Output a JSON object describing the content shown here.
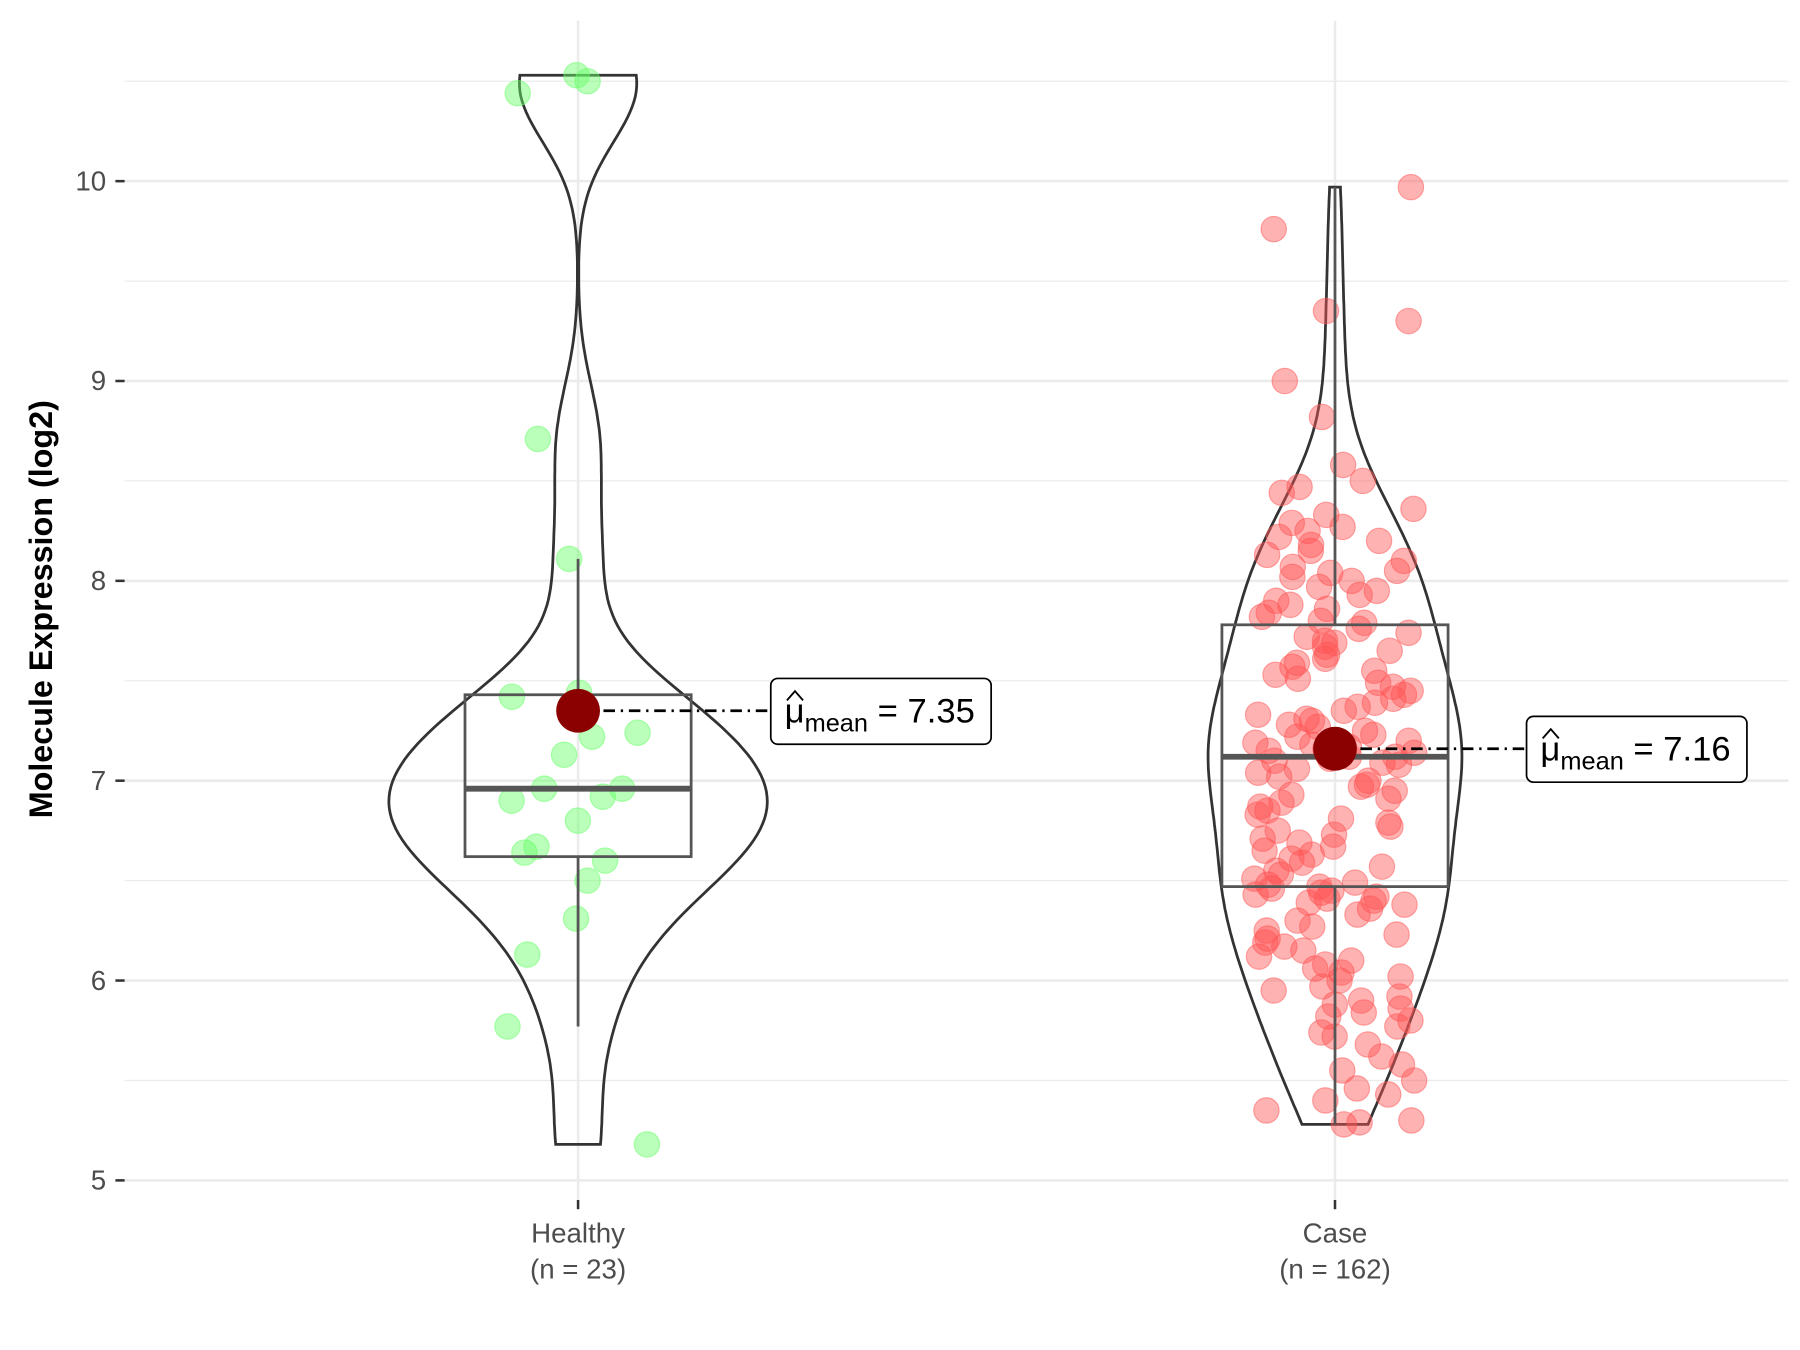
{
  "chart_data": {
    "type": "violin-box-scatter",
    "ylabel": "Molecule Expression (log2)",
    "xlabel": "",
    "ylim": [
      4.9,
      10.7
    ],
    "yticks": [
      5,
      6,
      7,
      8,
      9,
      10
    ],
    "grid": true,
    "groups": [
      {
        "name": "Healthy",
        "n_label": "(n = 23)",
        "color": "#66ff66",
        "box": {
          "lower_whisker": 5.77,
          "q1": 6.62,
          "median": 6.96,
          "q3": 7.43,
          "upper_whisker": 8.11
        },
        "mean": 7.35,
        "mean_label": {
          "symbol": "μ",
          "subscript": "mean",
          "value": "= 7.35"
        },
        "points": [
          10.53,
          10.5,
          10.44,
          8.71,
          8.11,
          7.44,
          7.42,
          7.24,
          7.22,
          7.13,
          6.96,
          6.96,
          6.92,
          6.9,
          6.8,
          6.67,
          6.6,
          6.64,
          6.5,
          6.31,
          6.13,
          5.77,
          5.18
        ]
      },
      {
        "name": "Case",
        "n_label": "(n = 162)",
        "color": "#ff5555",
        "box": {
          "lower_whisker": 5.28,
          "q1": 6.47,
          "median": 7.12,
          "q3": 7.78,
          "upper_whisker": 9.97
        },
        "mean": 7.16,
        "mean_label": {
          "symbol": "μ",
          "subscript": "mean",
          "value": "= 7.16"
        },
        "points": [
          9.97,
          9.76,
          9.35,
          9.3,
          9.0,
          8.82,
          8.58,
          8.5,
          8.47,
          8.44,
          8.36,
          8.33,
          8.29,
          8.27,
          8.25,
          8.22,
          8.2,
          8.18,
          8.15,
          8.13,
          8.1,
          8.07,
          8.05,
          8.04,
          8.02,
          8.0,
          7.97,
          7.95,
          7.93,
          7.9,
          7.88,
          7.86,
          7.84,
          7.82,
          7.8,
          7.79,
          7.76,
          7.74,
          7.72,
          7.7,
          7.69,
          7.67,
          7.65,
          7.63,
          7.61,
          7.59,
          7.57,
          7.55,
          7.53,
          7.51,
          7.49,
          7.47,
          7.45,
          7.43,
          7.41,
          7.39,
          7.37,
          7.35,
          7.33,
          7.31,
          7.3,
          7.28,
          7.27,
          7.25,
          7.23,
          7.22,
          7.2,
          7.19,
          7.18,
          7.17,
          7.16,
          7.15,
          7.14,
          7.13,
          7.12,
          7.12,
          7.11,
          7.1,
          7.09,
          7.08,
          7.06,
          7.04,
          7.02,
          7.0,
          6.98,
          6.97,
          6.95,
          6.93,
          6.91,
          6.89,
          6.87,
          6.85,
          6.83,
          6.81,
          6.79,
          6.77,
          6.75,
          6.73,
          6.71,
          6.69,
          6.67,
          6.65,
          6.63,
          6.61,
          6.59,
          6.57,
          6.55,
          6.53,
          6.51,
          6.49,
          6.48,
          6.47,
          6.46,
          6.45,
          6.44,
          6.43,
          6.42,
          6.41,
          6.4,
          6.39,
          6.38,
          6.36,
          6.33,
          6.3,
          6.27,
          6.25,
          6.23,
          6.21,
          6.19,
          6.17,
          6.15,
          6.12,
          6.1,
          6.08,
          6.06,
          6.04,
          6.02,
          6.0,
          5.97,
          5.95,
          5.92,
          5.9,
          5.88,
          5.86,
          5.84,
          5.82,
          5.8,
          5.77,
          5.74,
          5.72,
          5.68,
          5.62,
          5.58,
          5.55,
          5.5,
          5.46,
          5.43,
          5.4,
          5.35,
          5.3,
          5.28,
          5.29
        ]
      }
    ],
    "mean_point_color": "#8b0000"
  }
}
